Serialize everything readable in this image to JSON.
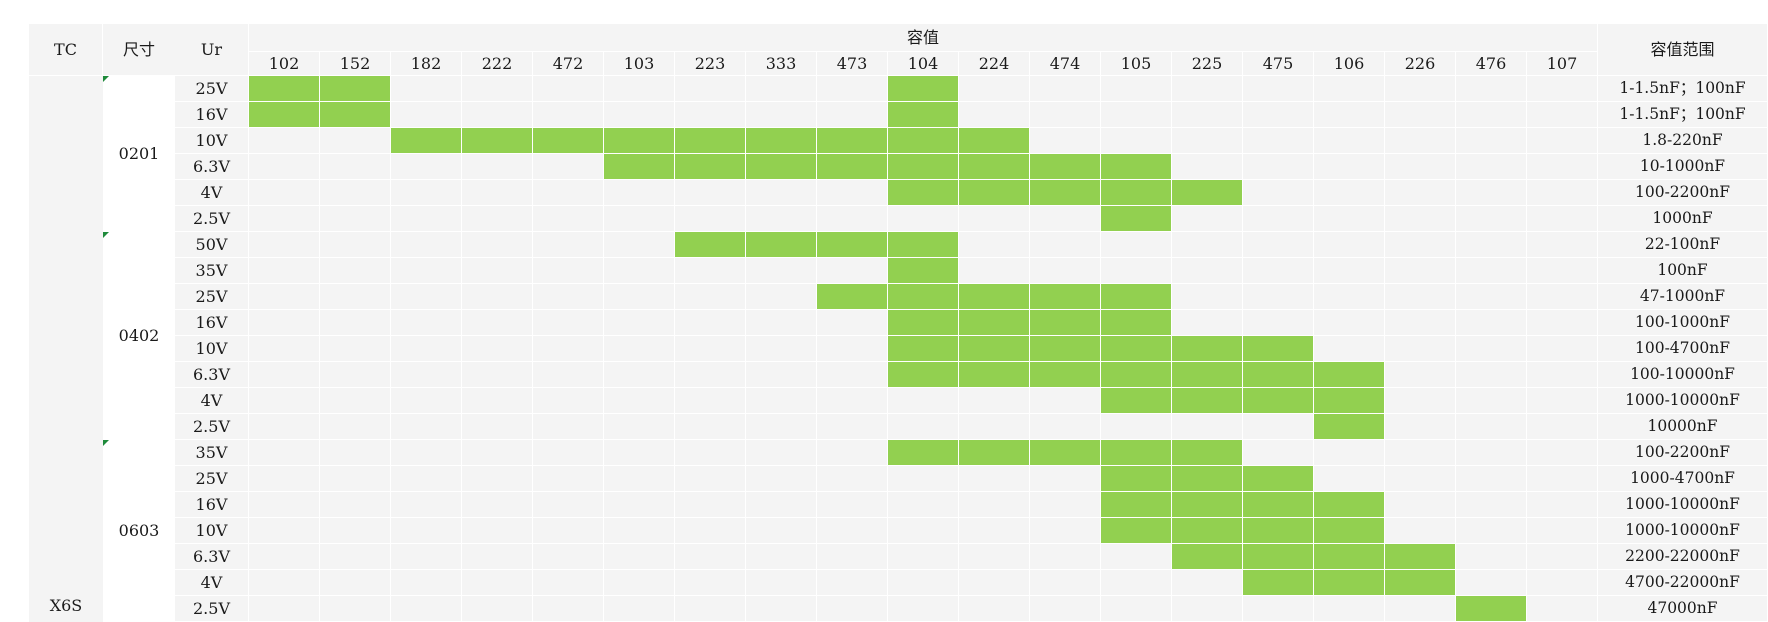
{
  "table": {
    "header": {
      "tc": "TC",
      "size": "尺寸",
      "ur": "Ur",
      "capacitance": "容值",
      "range": "容值范围"
    },
    "codes": [
      "102",
      "152",
      "182",
      "222",
      "472",
      "103",
      "223",
      "333",
      "473",
      "104",
      "224",
      "474",
      "105",
      "225",
      "475",
      "106",
      "226",
      "476",
      "107"
    ],
    "tc_value": "X6S",
    "fill_color": "#92d050",
    "groups": [
      {
        "size": "0201",
        "rows": [
          {
            "voltage": "25V",
            "start": 0,
            "end": 1,
            "range": "1-1.5nF；100nF",
            "extra": [
              9
            ]
          },
          {
            "voltage": "16V",
            "start": 0,
            "end": 1,
            "range": "1-1.5nF；100nF",
            "extra": [
              9
            ]
          },
          {
            "voltage": "10V",
            "start": 2,
            "end": 10,
            "range": "1.8-220nF"
          },
          {
            "voltage": "6.3V",
            "start": 5,
            "end": 12,
            "range": "10-1000nF"
          },
          {
            "voltage": "4V",
            "start": 9,
            "end": 13,
            "range": "100-2200nF"
          },
          {
            "voltage": "2.5V",
            "start": 12,
            "end": 12,
            "range": "1000nF"
          }
        ]
      },
      {
        "size": "0402",
        "rows": [
          {
            "voltage": "50V",
            "start": 6,
            "end": 9,
            "range": "22-100nF"
          },
          {
            "voltage": "35V",
            "start": 9,
            "end": 9,
            "range": "100nF"
          },
          {
            "voltage": "25V",
            "start": 8,
            "end": 12,
            "range": "47-1000nF"
          },
          {
            "voltage": "16V",
            "start": 9,
            "end": 12,
            "range": "100-1000nF"
          },
          {
            "voltage": "10V",
            "start": 9,
            "end": 14,
            "range": "100-4700nF"
          },
          {
            "voltage": "6.3V",
            "start": 9,
            "end": 15,
            "range": "100-10000nF"
          },
          {
            "voltage": "4V",
            "start": 12,
            "end": 15,
            "range": "1000-10000nF"
          },
          {
            "voltage": "2.5V",
            "start": 15,
            "end": 15,
            "range": "10000nF"
          }
        ]
      },
      {
        "size": "0603",
        "rows": [
          {
            "voltage": "35V",
            "start": 9,
            "end": 13,
            "range": "100-2200nF"
          },
          {
            "voltage": "25V",
            "start": 12,
            "end": 14,
            "range": "1000-4700nF"
          },
          {
            "voltage": "16V",
            "start": 12,
            "end": 15,
            "range": "1000-10000nF"
          },
          {
            "voltage": "10V",
            "start": 12,
            "end": 15,
            "range": "1000-10000nF"
          },
          {
            "voltage": "6.3V",
            "start": 13,
            "end": 16,
            "range": "2200-22000nF"
          },
          {
            "voltage": "4V",
            "start": 14,
            "end": 16,
            "range": "4700-22000nF"
          },
          {
            "voltage": "2.5V",
            "start": 17,
            "end": 17,
            "range": "47000nF"
          }
        ]
      }
    ]
  }
}
